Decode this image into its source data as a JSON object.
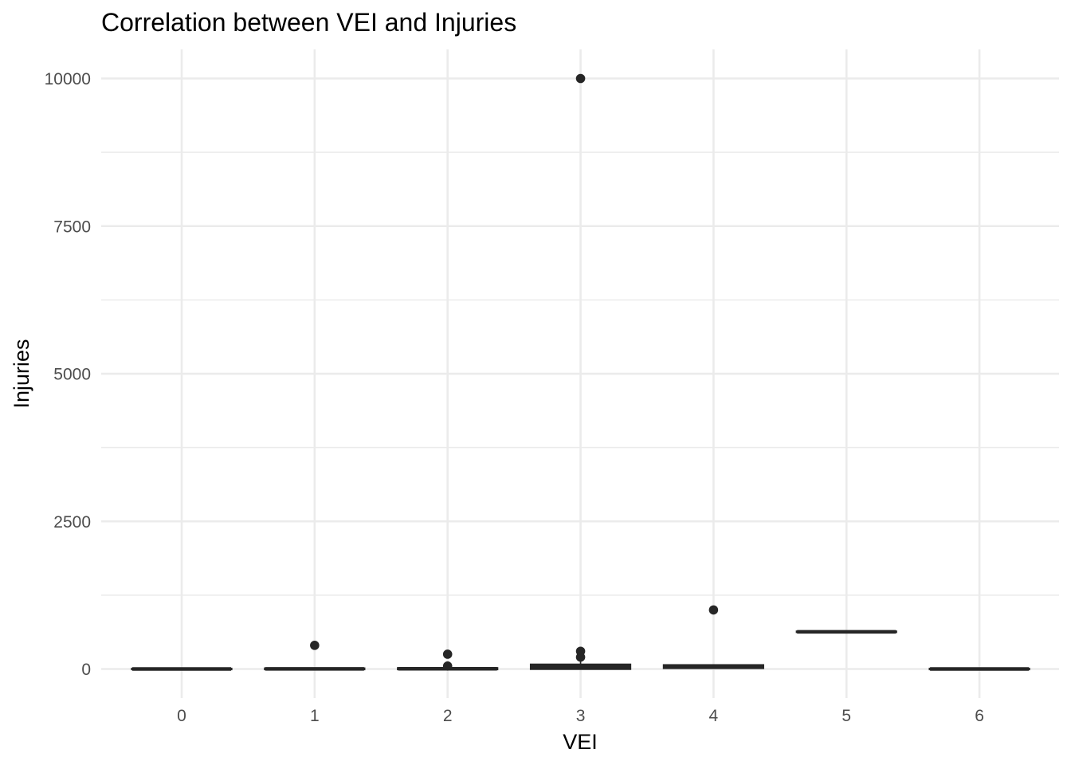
{
  "chart_data": {
    "type": "box",
    "title": "Correlation between VEI and Injuries",
    "xlabel": "VEI",
    "ylabel": "Injuries",
    "categories": [
      "0",
      "1",
      "2",
      "3",
      "4",
      "5",
      "6"
    ],
    "ylim": [
      -850,
      10500
    ],
    "y_ticks": [
      0,
      2500,
      5000,
      7500,
      10000
    ],
    "y_tick_labels": [
      "0",
      "2500",
      "5000",
      "7500",
      "10000"
    ],
    "grid": true,
    "legend": "none",
    "colors": {
      "box": "#262626",
      "grid": "#ebebeb",
      "tick_label": "#4d4d4d",
      "title": "#000000"
    },
    "boxes": [
      {
        "vei": "0",
        "q1": 0,
        "median": 0,
        "q3": 0,
        "whisker_low": 0,
        "whisker_high": 0,
        "outliers": []
      },
      {
        "vei": "1",
        "q1": 0,
        "median": 2,
        "q3": 5,
        "whisker_low": 0,
        "whisker_high": 10,
        "outliers": [
          400
        ]
      },
      {
        "vei": "2",
        "q1": 0,
        "median": 3,
        "q3": 10,
        "whisker_low": 0,
        "whisker_high": 25,
        "outliers": [
          50,
          250
        ]
      },
      {
        "vei": "3",
        "q1": 5,
        "median": 25,
        "q3": 70,
        "whisker_low": 0,
        "whisker_high": 150,
        "outliers": [
          200,
          300,
          10000
        ]
      },
      {
        "vei": "4",
        "q1": 20,
        "median": 40,
        "q3": 60,
        "whisker_low": 10,
        "whisker_high": 80,
        "outliers": [
          1000
        ]
      },
      {
        "vei": "5",
        "q1": 630,
        "median": 630,
        "q3": 630,
        "whisker_low": 630,
        "whisker_high": 630,
        "outliers": []
      },
      {
        "vei": "6",
        "q1": 0,
        "median": 0,
        "q3": 0,
        "whisker_low": 0,
        "whisker_high": 0,
        "outliers": []
      }
    ]
  }
}
